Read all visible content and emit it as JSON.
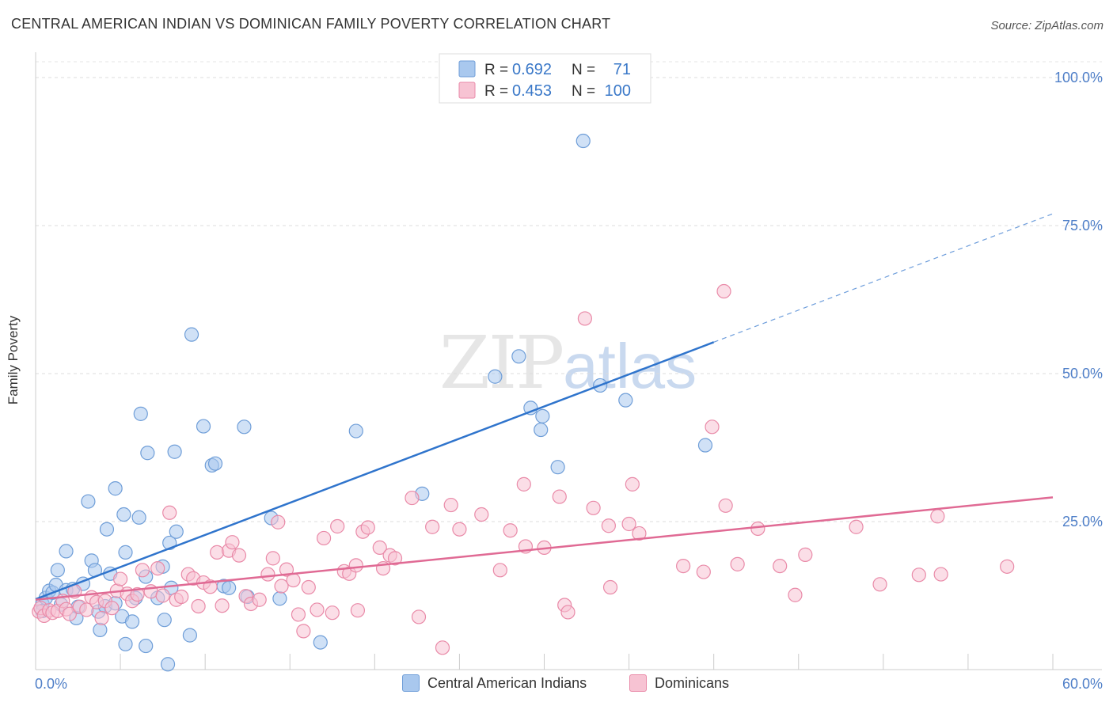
{
  "header": {
    "title": "CENTRAL AMERICAN INDIAN VS DOMINICAN FAMILY POVERTY CORRELATION CHART",
    "source": "Source: ZipAtlas.com"
  },
  "watermark": {
    "zip": "ZIP",
    "atlas": "atlas"
  },
  "legend": {
    "r_label": "R =",
    "n_label": "N =",
    "rows": [
      {
        "r": "0.692",
        "n": "71",
        "color": "#a9c8ee",
        "stroke": "#6f9ed8"
      },
      {
        "r": "0.453",
        "n": "100",
        "color": "#f7c3d3",
        "stroke": "#e98aa8"
      }
    ]
  },
  "bottom_legend": {
    "items": [
      {
        "label": "Central American Indians",
        "color": "#a9c8ee",
        "border": "#6f9ed8"
      },
      {
        "label": "Dominicans",
        "color": "#f7c3d3",
        "border": "#e98aa8"
      }
    ]
  },
  "chart_data": {
    "type": "scatter",
    "title": "CENTRAL AMERICAN INDIAN VS DOMINICAN FAMILY POVERTY CORRELATION CHART",
    "xlabel": "",
    "ylabel": "Family Poverty",
    "xlim": [
      0,
      60
    ],
    "ylim": [
      0,
      100
    ],
    "x_tick_labels": [
      "0.0%",
      "60.0%"
    ],
    "y_ticks": [
      25,
      50,
      75,
      100
    ],
    "y_tick_labels": [
      "25.0%",
      "50.0%",
      "75.0%",
      "100.0%"
    ],
    "grid": true,
    "series": [
      {
        "name": "Central American Indians",
        "color": "#6f9ed8",
        "fill": "#a9c8ee",
        "line_color": "#2f74cc",
        "trend": {
          "x0": 0,
          "y0": 11.9,
          "x1": 40,
          "y1": 55.3,
          "extend_to_x": 60,
          "extend_y": 77
        },
        "points": [
          [
            0.4,
            11.1
          ],
          [
            0.4,
            9.9
          ],
          [
            0.6,
            12.1
          ],
          [
            0.8,
            13.3
          ],
          [
            1.0,
            13.0
          ],
          [
            1.2,
            14.3
          ],
          [
            1.3,
            16.8
          ],
          [
            1.5,
            11.0
          ],
          [
            1.8,
            13.4
          ],
          [
            1.8,
            20.0
          ],
          [
            2.2,
            13.6
          ],
          [
            2.4,
            8.7
          ],
          [
            2.5,
            10.6
          ],
          [
            2.8,
            14.5
          ],
          [
            3.1,
            28.4
          ],
          [
            3.3,
            18.4
          ],
          [
            3.5,
            16.8
          ],
          [
            3.7,
            9.8
          ],
          [
            3.8,
            6.7
          ],
          [
            4.1,
            10.7
          ],
          [
            4.2,
            23.7
          ],
          [
            4.4,
            16.2
          ],
          [
            4.7,
            11.2
          ],
          [
            4.7,
            30.6
          ],
          [
            5.1,
            9.0
          ],
          [
            5.2,
            26.2
          ],
          [
            5.3,
            4.3
          ],
          [
            5.3,
            19.8
          ],
          [
            5.7,
            8.1
          ],
          [
            5.9,
            12.1
          ],
          [
            6.1,
            25.7
          ],
          [
            6.2,
            43.2
          ],
          [
            6.5,
            4.0
          ],
          [
            6.5,
            15.7
          ],
          [
            6.6,
            36.6
          ],
          [
            7.2,
            12.1
          ],
          [
            7.5,
            17.4
          ],
          [
            7.6,
            8.4
          ],
          [
            7.8,
            0.9
          ],
          [
            7.9,
            21.4
          ],
          [
            8.0,
            13.8
          ],
          [
            8.2,
            36.8
          ],
          [
            8.3,
            23.3
          ],
          [
            9.1,
            5.8
          ],
          [
            9.2,
            56.6
          ],
          [
            9.9,
            41.1
          ],
          [
            10.4,
            34.5
          ],
          [
            10.6,
            34.8
          ],
          [
            11.1,
            14.1
          ],
          [
            11.4,
            13.8
          ],
          [
            12.3,
            41.0
          ],
          [
            12.5,
            12.3
          ],
          [
            13.9,
            25.6
          ],
          [
            14.4,
            12.0
          ],
          [
            16.8,
            4.6
          ],
          [
            18.9,
            40.3
          ],
          [
            22.8,
            29.7
          ],
          [
            27.1,
            49.5
          ],
          [
            28.5,
            52.9
          ],
          [
            29.2,
            44.2
          ],
          [
            29.9,
            42.8
          ],
          [
            29.8,
            40.5
          ],
          [
            30.8,
            34.2
          ],
          [
            32.3,
            89.3
          ],
          [
            33.3,
            48.0
          ],
          [
            34.8,
            45.5
          ],
          [
            39.5,
            37.9
          ]
        ]
      },
      {
        "name": "Dominicans",
        "color": "#e98aa8",
        "fill": "#f7c3d3",
        "line_color": "#e06a94",
        "trend": {
          "x0": 0,
          "y0": 11.8,
          "x1": 60,
          "y1": 29.1
        },
        "points": [
          [
            0.2,
            9.8
          ],
          [
            0.3,
            10.4
          ],
          [
            0.5,
            9.1
          ],
          [
            0.8,
            10.0
          ],
          [
            1.0,
            9.6
          ],
          [
            1.3,
            9.9
          ],
          [
            1.6,
            11.6
          ],
          [
            1.8,
            10.2
          ],
          [
            2.0,
            9.4
          ],
          [
            2.3,
            13.2
          ],
          [
            2.6,
            10.6
          ],
          [
            3.0,
            10.1
          ],
          [
            3.3,
            12.2
          ],
          [
            3.6,
            11.4
          ],
          [
            3.9,
            8.7
          ],
          [
            4.1,
            11.6
          ],
          [
            4.5,
            10.4
          ],
          [
            4.8,
            13.3
          ],
          [
            5.0,
            15.3
          ],
          [
            5.4,
            12.8
          ],
          [
            5.7,
            11.6
          ],
          [
            6.0,
            12.7
          ],
          [
            6.3,
            16.8
          ],
          [
            6.8,
            13.2
          ],
          [
            7.2,
            17.1
          ],
          [
            7.5,
            12.5
          ],
          [
            7.9,
            26.5
          ],
          [
            8.3,
            11.8
          ],
          [
            8.6,
            12.3
          ],
          [
            9.0,
            16.1
          ],
          [
            9.3,
            15.4
          ],
          [
            9.6,
            10.7
          ],
          [
            9.9,
            14.7
          ],
          [
            10.3,
            14.0
          ],
          [
            10.7,
            19.8
          ],
          [
            11.0,
            10.8
          ],
          [
            11.4,
            20.1
          ],
          [
            11.6,
            21.5
          ],
          [
            12.0,
            19.3
          ],
          [
            12.4,
            12.4
          ],
          [
            12.7,
            11.1
          ],
          [
            13.2,
            11.8
          ],
          [
            13.7,
            16.1
          ],
          [
            14.0,
            18.8
          ],
          [
            14.3,
            24.9
          ],
          [
            14.5,
            14.1
          ],
          [
            14.8,
            16.9
          ],
          [
            15.2,
            15.1
          ],
          [
            15.5,
            9.3
          ],
          [
            15.8,
            6.5
          ],
          [
            16.1,
            13.9
          ],
          [
            16.6,
            10.1
          ],
          [
            17.0,
            22.2
          ],
          [
            17.5,
            9.6
          ],
          [
            17.8,
            24.2
          ],
          [
            18.2,
            16.6
          ],
          [
            18.5,
            16.2
          ],
          [
            18.9,
            17.6
          ],
          [
            19.0,
            10.0
          ],
          [
            19.3,
            23.3
          ],
          [
            19.6,
            24.0
          ],
          [
            20.3,
            20.6
          ],
          [
            20.5,
            17.1
          ],
          [
            20.9,
            19.3
          ],
          [
            21.2,
            18.8
          ],
          [
            22.2,
            29.0
          ],
          [
            22.6,
            8.9
          ],
          [
            23.4,
            24.1
          ],
          [
            24.0,
            3.7
          ],
          [
            24.5,
            27.8
          ],
          [
            25.0,
            23.7
          ],
          [
            26.3,
            26.2
          ],
          [
            27.4,
            16.8
          ],
          [
            28.0,
            23.5
          ],
          [
            28.8,
            31.3
          ],
          [
            28.9,
            20.8
          ],
          [
            30.0,
            20.6
          ],
          [
            30.9,
            29.2
          ],
          [
            31.2,
            10.9
          ],
          [
            31.4,
            9.7
          ],
          [
            32.4,
            59.3
          ],
          [
            32.9,
            27.3
          ],
          [
            33.8,
            24.3
          ],
          [
            33.9,
            13.9
          ],
          [
            35.0,
            24.6
          ],
          [
            35.2,
            31.3
          ],
          [
            35.6,
            23.0
          ],
          [
            38.2,
            17.5
          ],
          [
            39.4,
            16.5
          ],
          [
            39.9,
            41.0
          ],
          [
            40.6,
            63.9
          ],
          [
            40.7,
            27.7
          ],
          [
            41.4,
            17.8
          ],
          [
            42.6,
            23.8
          ],
          [
            43.9,
            17.5
          ],
          [
            44.8,
            12.6
          ],
          [
            45.4,
            19.4
          ],
          [
            48.4,
            24.1
          ],
          [
            49.8,
            14.4
          ],
          [
            52.1,
            16.0
          ],
          [
            53.2,
            25.9
          ],
          [
            53.4,
            16.1
          ],
          [
            57.3,
            17.4
          ]
        ]
      }
    ]
  }
}
